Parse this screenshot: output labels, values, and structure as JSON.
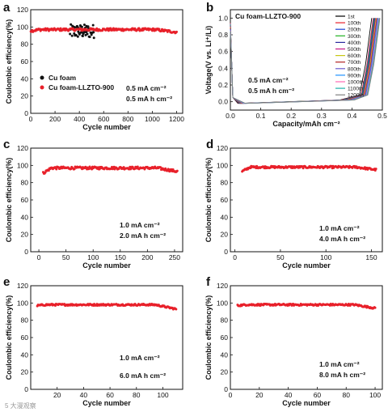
{
  "watermark": "5 大漫观察",
  "chart_data": [
    {
      "panel": "a",
      "type": "scatter",
      "xlabel": "Cycle number",
      "ylabel": "Coulombic efficiency(%)",
      "xlim": [
        0,
        1250
      ],
      "ylim": [
        0,
        120
      ],
      "xticks": [
        0,
        200,
        400,
        600,
        800,
        1000,
        1200
      ],
      "yticks": [
        0,
        20,
        40,
        60,
        80,
        100,
        120
      ],
      "legend": "top-left",
      "annotations": [
        "0.5 mA cm⁻²",
        "0.5 mA h cm⁻²"
      ],
      "series": [
        {
          "name": "Cu foam",
          "color": "#111111",
          "x_range": [
            320,
            520
          ],
          "y_mean": 95,
          "y_spread": 8
        },
        {
          "name": "Cu foam-LLZTO-900",
          "color": "#e8202a",
          "x_range": [
            1,
            1200
          ],
          "y_mean": 97,
          "y_spread": 1.5,
          "y_start": 95.5,
          "y_end": 94
        }
      ]
    },
    {
      "panel": "b",
      "type": "line",
      "title": "Cu foam-LLZTO-900",
      "xlabel": "Capacity/mAh cm⁻²",
      "ylabel": "Voltage(V vs. Li⁺/Li)",
      "xlim": [
        0,
        0.5
      ],
      "ylim": [
        -0.1,
        1.1
      ],
      "xticks": [
        0.0,
        0.1,
        0.2,
        0.3,
        0.4,
        0.5
      ],
      "yticks": [
        0.0,
        0.2,
        0.4,
        0.6,
        0.8,
        1.0
      ],
      "legend": "top-right",
      "annotations": [
        "0.5 mA cm⁻²",
        "0.5 mA h cm⁻²"
      ],
      "series": [
        {
          "name": "1st",
          "color": "#000000",
          "discharge_end": 0.025,
          "charge_end": 0.465
        },
        {
          "name": "100th",
          "color": "#e8202a",
          "discharge_end": 0.028,
          "charge_end": 0.47
        },
        {
          "name": "200th",
          "color": "#1a3fd6",
          "discharge_end": 0.03,
          "charge_end": 0.472
        },
        {
          "name": "300th",
          "color": "#1fb11f",
          "discharge_end": 0.032,
          "charge_end": 0.474
        },
        {
          "name": "400th",
          "color": "#2a2a9e",
          "discharge_end": 0.034,
          "charge_end": 0.476
        },
        {
          "name": "500th",
          "color": "#c71585",
          "discharge_end": 0.036,
          "charge_end": 0.478
        },
        {
          "name": "600th",
          "color": "#c8c814",
          "discharge_end": 0.038,
          "charge_end": 0.48
        },
        {
          "name": "700th",
          "color": "#b22222",
          "discharge_end": 0.04,
          "charge_end": 0.482
        },
        {
          "name": "800th",
          "color": "#6a5acd",
          "discharge_end": 0.042,
          "charge_end": 0.484
        },
        {
          "name": "900th",
          "color": "#1e90ff",
          "discharge_end": 0.044,
          "charge_end": 0.486
        },
        {
          "name": "1000th",
          "color": "#ff69b4",
          "discharge_end": 0.046,
          "charge_end": 0.488
        },
        {
          "name": "1100th",
          "color": "#20b2aa",
          "discharge_end": 0.048,
          "charge_end": 0.49
        },
        {
          "name": "1200th",
          "color": "#808080",
          "discharge_end": 0.05,
          "charge_end": 0.492
        }
      ]
    },
    {
      "panel": "c",
      "type": "scatter",
      "xlabel": "Cycle number",
      "ylabel": "Coulombic efficiency(%)",
      "xlim": [
        -15,
        265
      ],
      "ylim": [
        0,
        120
      ],
      "xticks": [
        0,
        50,
        100,
        150,
        200,
        250
      ],
      "yticks": [
        0,
        20,
        40,
        60,
        80,
        100,
        120
      ],
      "annotations": [
        "1.0 mA cm⁻²",
        "2.0 mA h cm⁻²"
      ],
      "series": [
        {
          "name": "",
          "color": "#e8202a",
          "x_range": [
            8,
            255
          ],
          "y_mean": 97,
          "y_spread": 1.5,
          "y_start": 91,
          "y_end": 93
        }
      ]
    },
    {
      "panel": "d",
      "type": "scatter",
      "xlabel": "Cycle number",
      "ylabel": "Coulombic efficiency(%)",
      "xlim": [
        -5,
        162
      ],
      "ylim": [
        0,
        120
      ],
      "xticks": [
        0,
        50,
        100,
        150
      ],
      "yticks": [
        0,
        20,
        40,
        60,
        80,
        100,
        120
      ],
      "annotations": [
        "1.0 mA cm⁻²",
        "4.0 mA h cm⁻²"
      ],
      "series": [
        {
          "name": "",
          "color": "#e8202a",
          "x_range": [
            8,
            155
          ],
          "y_mean": 98,
          "y_spread": 1.2,
          "y_start": 93,
          "y_end": 95
        }
      ]
    },
    {
      "panel": "e",
      "type": "scatter",
      "xlabel": "Cycle number",
      "ylabel": "Coulombic efficiency(%)",
      "xlim": [
        0,
        115
      ],
      "ylim": [
        0,
        120
      ],
      "xticks": [
        20,
        40,
        60,
        80,
        100
      ],
      "yticks": [
        0,
        20,
        40,
        60,
        80,
        100,
        120
      ],
      "annotations": [
        "1.0 mA cm⁻²",
        "6.0 mA h cm⁻²"
      ],
      "series": [
        {
          "name": "",
          "color": "#e8202a",
          "x_range": [
            5,
            110
          ],
          "y_mean": 98,
          "y_spread": 1,
          "y_start": 97,
          "y_end": 93
        }
      ]
    },
    {
      "panel": "f",
      "type": "scatter",
      "xlabel": "Cycle number",
      "ylabel": "Coulombic efficiency(%)",
      "xlim": [
        0,
        105
      ],
      "ylim": [
        0,
        120
      ],
      "xticks": [
        0,
        20,
        40,
        60,
        80,
        100
      ],
      "yticks": [
        0,
        20,
        40,
        60,
        80,
        100,
        120
      ],
      "annotations": [
        "1.0 mA cm⁻²",
        "8.0 mA h cm⁻²"
      ],
      "series": [
        {
          "name": "",
          "color": "#e8202a",
          "x_range": [
            5,
            100
          ],
          "y_mean": 98,
          "y_spread": 1,
          "y_start": 97,
          "y_end": 94
        }
      ]
    }
  ]
}
